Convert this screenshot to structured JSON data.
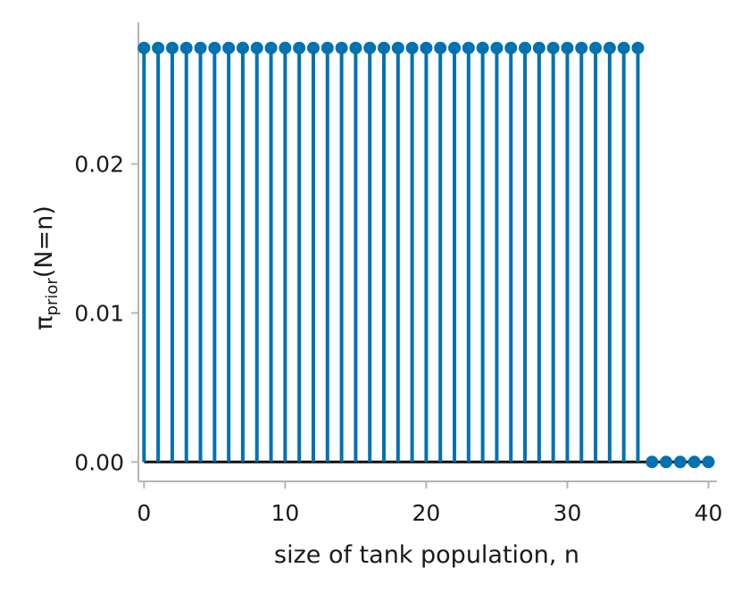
{
  "chart_data": {
    "type": "stem",
    "xlabel": "size of tank population, n",
    "ylabel": {
      "base": "π",
      "subscript": "prior",
      "suffix": "(N=n)"
    },
    "x": [
      0,
      1,
      2,
      3,
      4,
      5,
      6,
      7,
      8,
      9,
      10,
      11,
      12,
      13,
      14,
      15,
      16,
      17,
      18,
      19,
      20,
      21,
      22,
      23,
      24,
      25,
      26,
      27,
      28,
      29,
      30,
      31,
      32,
      33,
      34,
      35,
      36,
      37,
      38,
      39,
      40
    ],
    "values": [
      0.02778,
      0.02778,
      0.02778,
      0.02778,
      0.02778,
      0.02778,
      0.02778,
      0.02778,
      0.02778,
      0.02778,
      0.02778,
      0.02778,
      0.02778,
      0.02778,
      0.02778,
      0.02778,
      0.02778,
      0.02778,
      0.02778,
      0.02778,
      0.02778,
      0.02778,
      0.02778,
      0.02778,
      0.02778,
      0.02778,
      0.02778,
      0.02778,
      0.02778,
      0.02778,
      0.02778,
      0.02778,
      0.02778,
      0.02778,
      0.02778,
      0.02778,
      0,
      0,
      0,
      0,
      0
    ],
    "xlim": [
      -0.4,
      40.6
    ],
    "ylim": [
      -0.0013,
      0.0295
    ],
    "xticks": [
      0,
      10,
      20,
      30,
      40
    ],
    "xtick_labels": [
      "0",
      "10",
      "20",
      "30",
      "40"
    ],
    "yticks": [
      0,
      0.01,
      0.02
    ],
    "ytick_labels": [
      "0.00",
      "0.01",
      "0.02"
    ],
    "baseline": 0,
    "grid": false,
    "colors": {
      "stem": "#0072b2",
      "baseline": "#111111",
      "axis": "#b5b5b5"
    }
  }
}
